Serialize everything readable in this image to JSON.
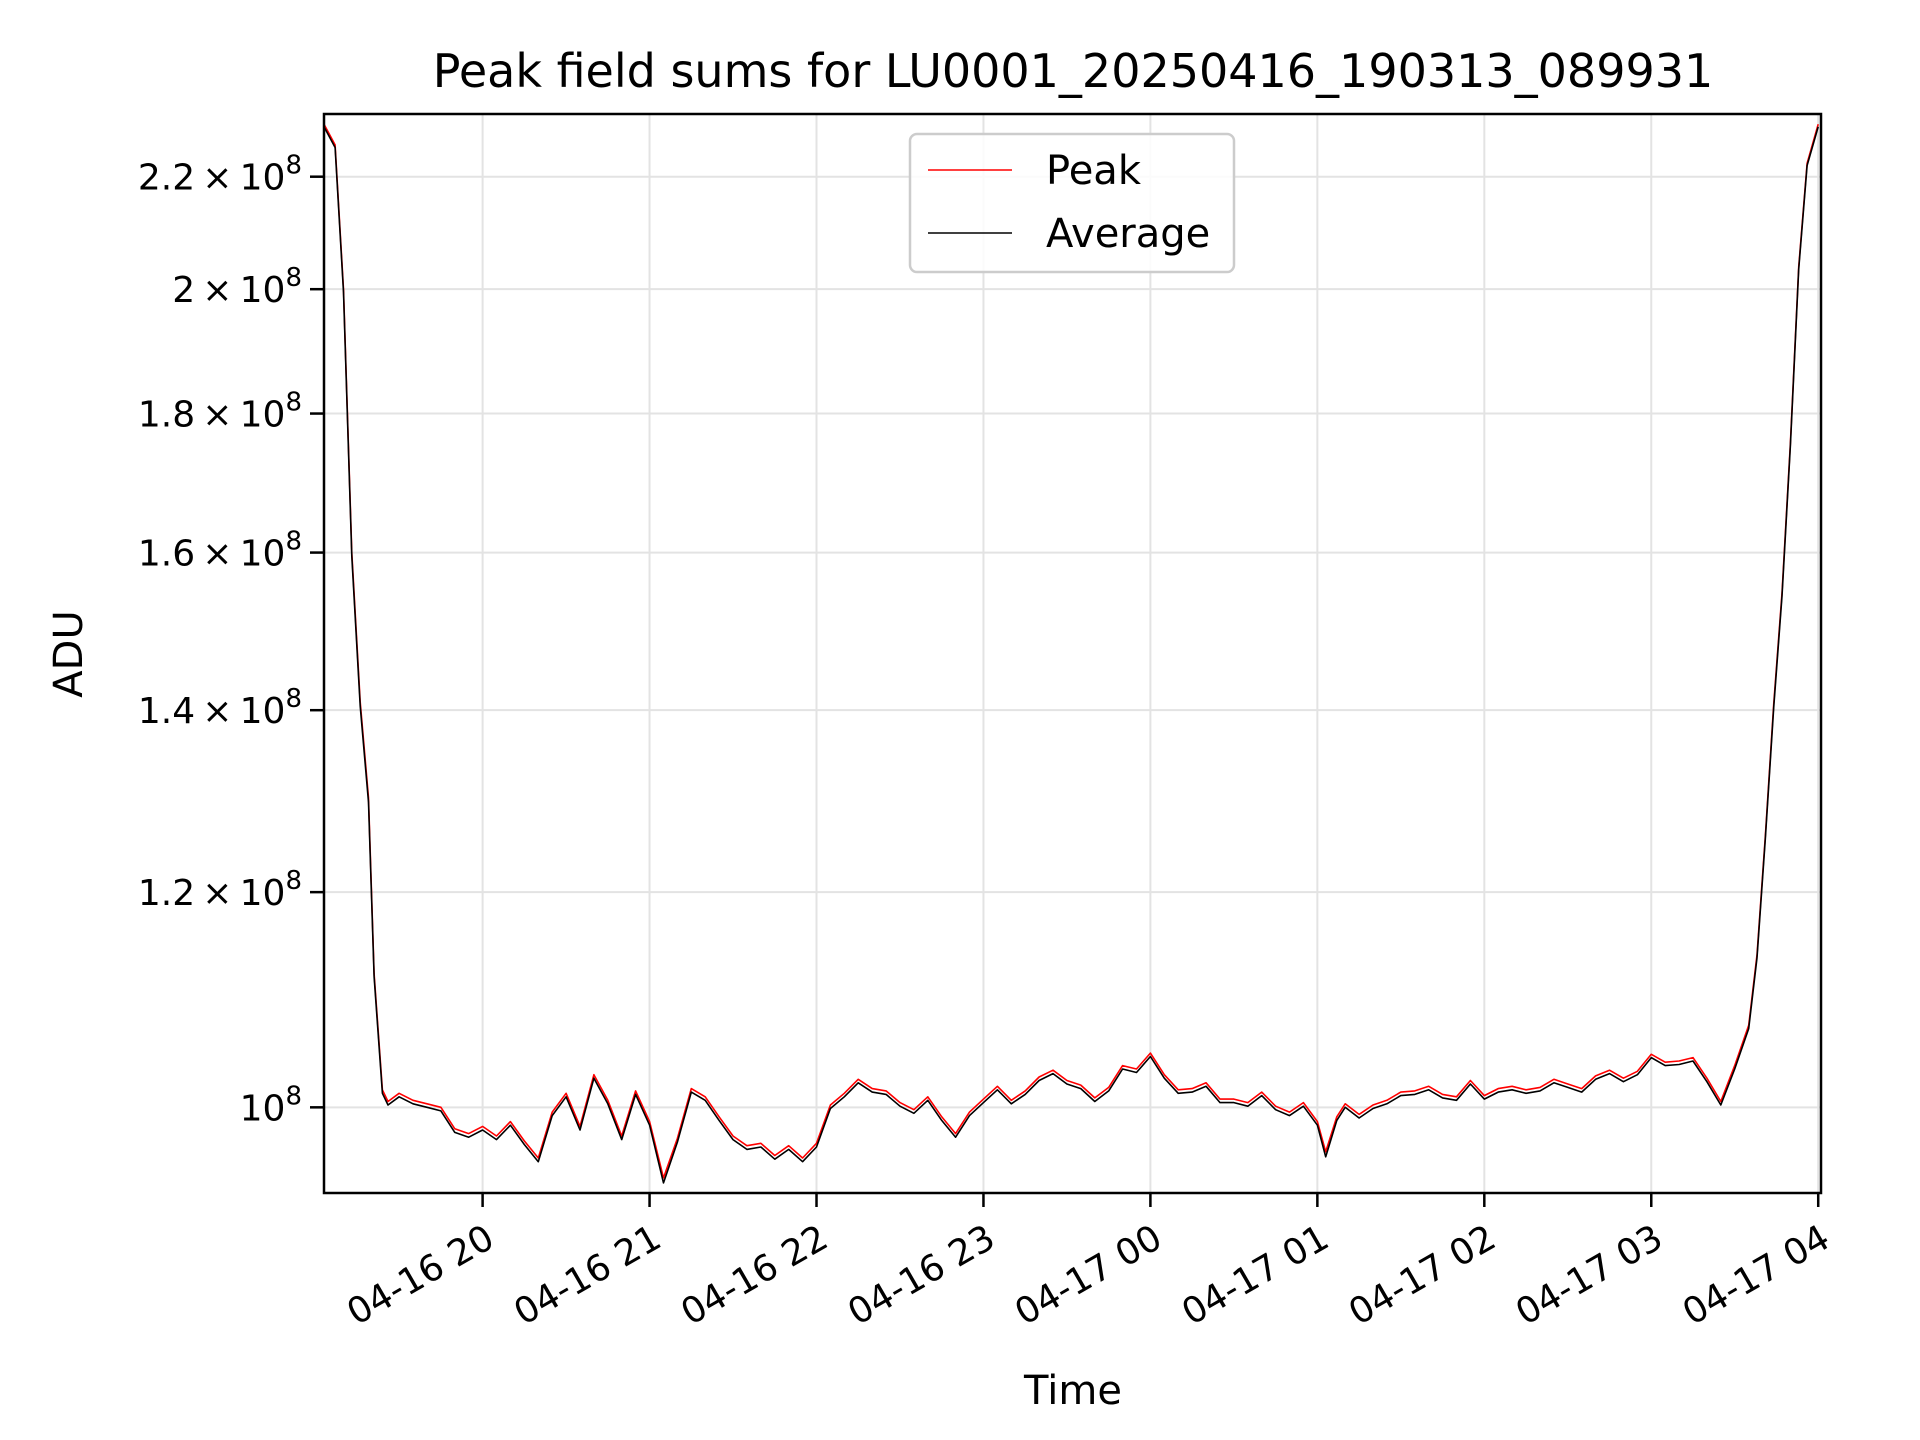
{
  "chart_data": {
    "type": "line",
    "title": "Peak field sums for LU0001_20250416_190313_089931",
    "xlabel": "Time",
    "ylabel": "ADU",
    "y_scale": "log",
    "ylim": [
      93000000,
      232000000
    ],
    "xlim": [
      "04-16 19:03:00",
      "04-17 04:01:00"
    ],
    "grid": true,
    "legend_position": "top-center",
    "x_ticks": [
      {
        "label": "04-16 20",
        "value": "04-16 20:00"
      },
      {
        "label": "04-16 21",
        "value": "04-16 21:00"
      },
      {
        "label": "04-16 22",
        "value": "04-16 22:00"
      },
      {
        "label": "04-16 23",
        "value": "04-16 23:00"
      },
      {
        "label": "04-17 00",
        "value": "04-17 00:00"
      },
      {
        "label": "04-17 01",
        "value": "04-17 01:00"
      },
      {
        "label": "04-17 02",
        "value": "04-17 02:00"
      },
      {
        "label": "04-17 03",
        "value": "04-17 03:00"
      },
      {
        "label": "04-17 04",
        "value": "04-17 04:00"
      }
    ],
    "y_ticks": [
      {
        "mantissa": "2.2",
        "exp": "8",
        "value": 220000000
      },
      {
        "mantissa": "2",
        "exp": "8",
        "value": 200000000
      },
      {
        "mantissa": "1.8",
        "exp": "8",
        "value": 180000000
      },
      {
        "mantissa": "1.6",
        "exp": "8",
        "value": 160000000
      },
      {
        "mantissa": "1.4",
        "exp": "8",
        "value": 140000000
      },
      {
        "mantissa": "1.2",
        "exp": "8",
        "value": 120000000
      },
      {
        "mantissa": "",
        "exp": "8",
        "value": 100000000
      }
    ],
    "x": [
      "04-16 19:03",
      "04-16 19:07",
      "04-16 19:10",
      "04-16 19:13",
      "04-16 19:16",
      "04-16 19:19",
      "04-16 19:21",
      "04-16 19:24",
      "04-16 19:26",
      "04-16 19:30",
      "04-16 19:35",
      "04-16 19:40",
      "04-16 19:45",
      "04-16 19:50",
      "04-16 19:55",
      "04-16 20:00",
      "04-16 20:05",
      "04-16 20:10",
      "04-16 20:15",
      "04-16 20:20",
      "04-16 20:25",
      "04-16 20:30",
      "04-16 20:35",
      "04-16 20:40",
      "04-16 20:45",
      "04-16 20:50",
      "04-16 20:55",
      "04-16 21:00",
      "04-16 21:05",
      "04-16 21:10",
      "04-16 21:15",
      "04-16 21:20",
      "04-16 21:25",
      "04-16 21:30",
      "04-16 21:35",
      "04-16 21:40",
      "04-16 21:45",
      "04-16 21:50",
      "04-16 21:55",
      "04-16 22:00",
      "04-16 22:05",
      "04-16 22:10",
      "04-16 22:15",
      "04-16 22:20",
      "04-16 22:25",
      "04-16 22:30",
      "04-16 22:35",
      "04-16 22:40",
      "04-16 22:45",
      "04-16 22:50",
      "04-16 22:55",
      "04-16 23:00",
      "04-16 23:05",
      "04-16 23:10",
      "04-16 23:15",
      "04-16 23:20",
      "04-16 23:25",
      "04-16 23:30",
      "04-16 23:35",
      "04-16 23:40",
      "04-16 23:45",
      "04-16 23:50",
      "04-16 23:55",
      "04-17 00:00",
      "04-17 00:05",
      "04-17 00:10",
      "04-17 00:15",
      "04-17 00:20",
      "04-17 00:25",
      "04-17 00:30",
      "04-17 00:35",
      "04-17 00:40",
      "04-17 00:45",
      "04-17 00:50",
      "04-17 00:55",
      "04-17 01:00",
      "04-17 01:03",
      "04-17 01:07",
      "04-17 01:10",
      "04-17 01:15",
      "04-17 01:20",
      "04-17 01:25",
      "04-17 01:30",
      "04-17 01:35",
      "04-17 01:40",
      "04-17 01:45",
      "04-17 01:50",
      "04-17 01:55",
      "04-17 02:00",
      "04-17 02:05",
      "04-17 02:10",
      "04-17 02:15",
      "04-17 02:20",
      "04-17 02:25",
      "04-17 02:30",
      "04-17 02:35",
      "04-17 02:40",
      "04-17 02:45",
      "04-17 02:50",
      "04-17 02:55",
      "04-17 03:00",
      "04-17 03:05",
      "04-17 03:10",
      "04-17 03:15",
      "04-17 03:20",
      "04-17 03:25",
      "04-17 03:30",
      "04-17 03:35",
      "04-17 03:38",
      "04-17 03:41",
      "04-17 03:44",
      "04-17 03:47",
      "04-17 03:50",
      "04-17 03:53",
      "04-17 03:56",
      "04-17 04:00"
    ],
    "series": [
      {
        "name": "Peak",
        "color": "#ff0000",
        "values": [
          230000000,
          226000000,
          200000000,
          160000000,
          141000000,
          130000000,
          112000000,
          101500000,
          100500000,
          101200000,
          100600000,
          100300000,
          100000000,
          98200000,
          97800000,
          98400000,
          97600000,
          98800000,
          97200000,
          95800000,
          99600000,
          101200000,
          98400000,
          102800000,
          100600000,
          97600000,
          101400000,
          98800000,
          94200000,
          97400000,
          101600000,
          100900000,
          99200000,
          97600000,
          96800000,
          97000000,
          96000000,
          96800000,
          95800000,
          97000000,
          100200000,
          101200000,
          102400000,
          101600000,
          101400000,
          100400000,
          99800000,
          100900000,
          99200000,
          97800000,
          99600000,
          100700000,
          101800000,
          100600000,
          101400000,
          102600000,
          103200000,
          102300000,
          101900000,
          100800000,
          101700000,
          103600000,
          103300000,
          104700000,
          102800000,
          101500000,
          101600000,
          102100000,
          100700000,
          100700000,
          100400000,
          101300000,
          100100000,
          99600000,
          100400000,
          98800000,
          96300000,
          99200000,
          100300000,
          99400000,
          100200000,
          100600000,
          101300000,
          101400000,
          101800000,
          101100000,
          100900000,
          102300000,
          101000000,
          101600000,
          101800000,
          101500000,
          101700000,
          102400000,
          102000000,
          101600000,
          102700000,
          103200000,
          102500000,
          103100000,
          104600000,
          103900000,
          104000000,
          104300000,
          102500000,
          100500000,
          103600000,
          107200000,
          113800000,
          125800000,
          140700000,
          154600000,
          175600000,
          203800000,
          222500000,
          230000000
        ]
      },
      {
        "name": "Average",
        "color": "#000000",
        "values": [
          229500000,
          225500000,
          199500000,
          159500000,
          140500000,
          129500000,
          111700000,
          101200000,
          100200000,
          100900000,
          100300000,
          100000000,
          99700000,
          97900000,
          97500000,
          98100000,
          97300000,
          98500000,
          96900000,
          95500000,
          99300000,
          100900000,
          98100000,
          102500000,
          100300000,
          97300000,
          101100000,
          98500000,
          93800000,
          97100000,
          101300000,
          100600000,
          98900000,
          97300000,
          96500000,
          96700000,
          95700000,
          96500000,
          95500000,
          96700000,
          99900000,
          100900000,
          102100000,
          101300000,
          101100000,
          100100000,
          99500000,
          100600000,
          98900000,
          97500000,
          99300000,
          100400000,
          101500000,
          100300000,
          101100000,
          102300000,
          102900000,
          102000000,
          101600000,
          100500000,
          101400000,
          103300000,
          103000000,
          104400000,
          102500000,
          101200000,
          101300000,
          101800000,
          100400000,
          100400000,
          100100000,
          101000000,
          99800000,
          99300000,
          100100000,
          98500000,
          95900000,
          98900000,
          100000000,
          99100000,
          99900000,
          100300000,
          101000000,
          101100000,
          101500000,
          100800000,
          100600000,
          102000000,
          100700000,
          101300000,
          101500000,
          101200000,
          101400000,
          102100000,
          101700000,
          101300000,
          102400000,
          102900000,
          102200000,
          102800000,
          104300000,
          103600000,
          103700000,
          104000000,
          102200000,
          100200000,
          103300000,
          106900000,
          113500000,
          125500000,
          140300000,
          154200000,
          175200000,
          203400000,
          222100000,
          229500000
        ]
      }
    ]
  }
}
